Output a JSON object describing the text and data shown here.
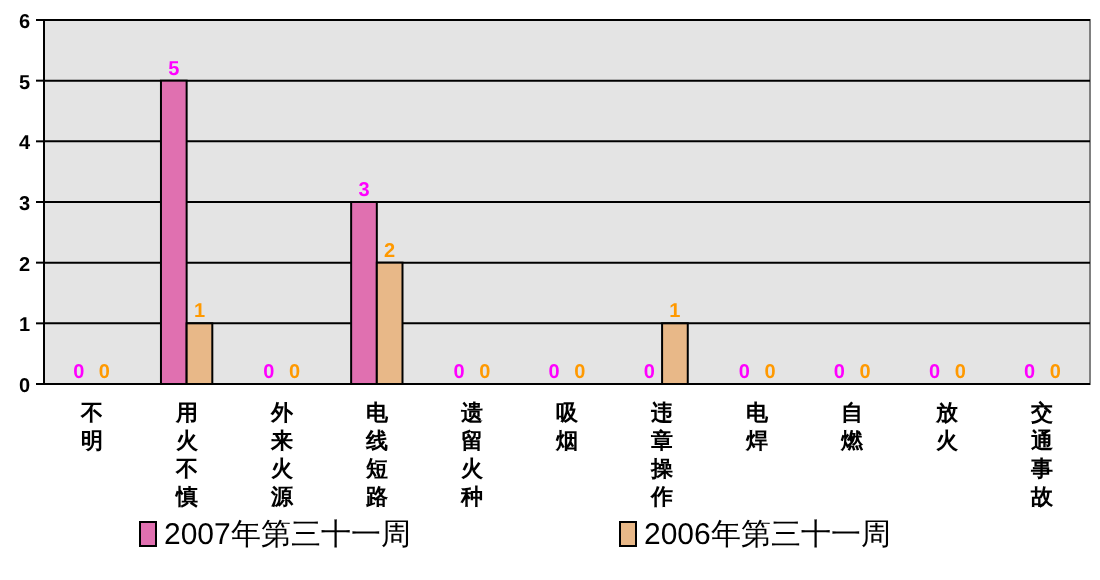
{
  "chart_data": {
    "type": "bar",
    "categories": [
      "不明",
      "用火不慎",
      "外来火源",
      "电线短路",
      "遗留火种",
      "吸烟",
      "违章操作",
      "电焊",
      "自燃",
      "放火",
      "交通事故"
    ],
    "series": [
      {
        "name": "2007年第三十一周",
        "color": "#e070b0",
        "values": [
          0,
          5,
          0,
          3,
          0,
          0,
          0,
          0,
          0,
          0,
          0
        ]
      },
      {
        "name": "2006年第三十一周",
        "color": "#e8b888",
        "values": [
          0,
          1,
          0,
          2,
          0,
          0,
          1,
          0,
          0,
          0,
          0
        ]
      }
    ],
    "ylim": [
      0,
      6
    ],
    "yticks": [
      0,
      1,
      2,
      3,
      4,
      5,
      6
    ],
    "grid": "y",
    "legend": "bottom",
    "data_labels": true
  }
}
